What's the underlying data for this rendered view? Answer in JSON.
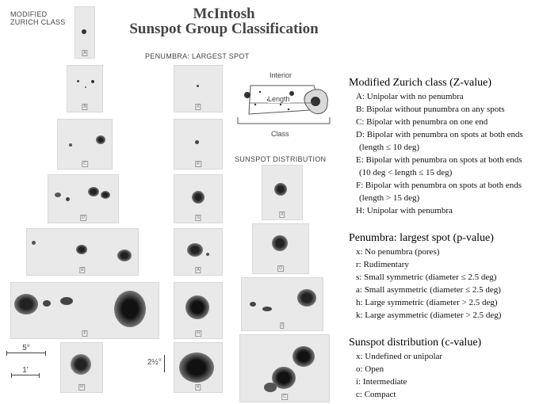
{
  "figure": {
    "title_line1": "McIntosh",
    "title_line2": "Sunspot Group Classification",
    "modified_zurich_label_1": "MODIFIED",
    "modified_zurich_label_2": "ZURICH CLASS",
    "penumbra_label": "PENUMBRA: LARGEST SPOT",
    "distribution_label": "SUNSPOT DISTRIBUTION",
    "inset": {
      "interior": "Interior",
      "length": "Length",
      "class": "Class"
    },
    "scale": {
      "deg5": "5°",
      "arcmin1": "1'",
      "deg2half": "2½°"
    },
    "zurich_tags": [
      "A",
      "B",
      "C",
      "D",
      "E",
      "F",
      "H"
    ],
    "penumbra_tags": [
      "X",
      "R",
      "S",
      "A",
      "H",
      "K"
    ],
    "distribution_tags": [
      "X",
      "O",
      "I",
      "C"
    ]
  },
  "legend": {
    "zurich": {
      "heading": "Modified Zurich class (Z-value)",
      "lines": [
        "A: Unipolar with no penumbra",
        "B: Bipolar without punumbra on any spots",
        "C: Bipolar with penumbra on one end",
        "D: Bipolar with penumbra on spots at both ends",
        "(length ≤ 10 deg)",
        "E: Bipolar with penumbra on spots at both ends",
        "(10 deg < length ≤ 15 deg)",
        "F: Bipolar with penumbra on spots at both ends",
        "(length > 15 deg)",
        "H: Unipolar with penumbra"
      ]
    },
    "penumbra": {
      "heading": "Penumbra: largest spot (p-value)",
      "lines": [
        "x: No penumbra (pores)",
        "r: Rudimentary",
        "s: Small symmetric (diameter ≤ 2.5 deg)",
        "a: Small asymmetric (diameter ≤ 2.5 deg)",
        "h: Large symmetric (diameter > 2.5 deg)",
        "k: Large asymmetric (diameter > 2.5 deg)"
      ]
    },
    "distribution": {
      "heading": "Sunspot distribution (c-value)",
      "lines": [
        "x: Undefined or unipolar",
        "o: Open",
        "i: Intermediate",
        "c: Compact"
      ]
    }
  }
}
